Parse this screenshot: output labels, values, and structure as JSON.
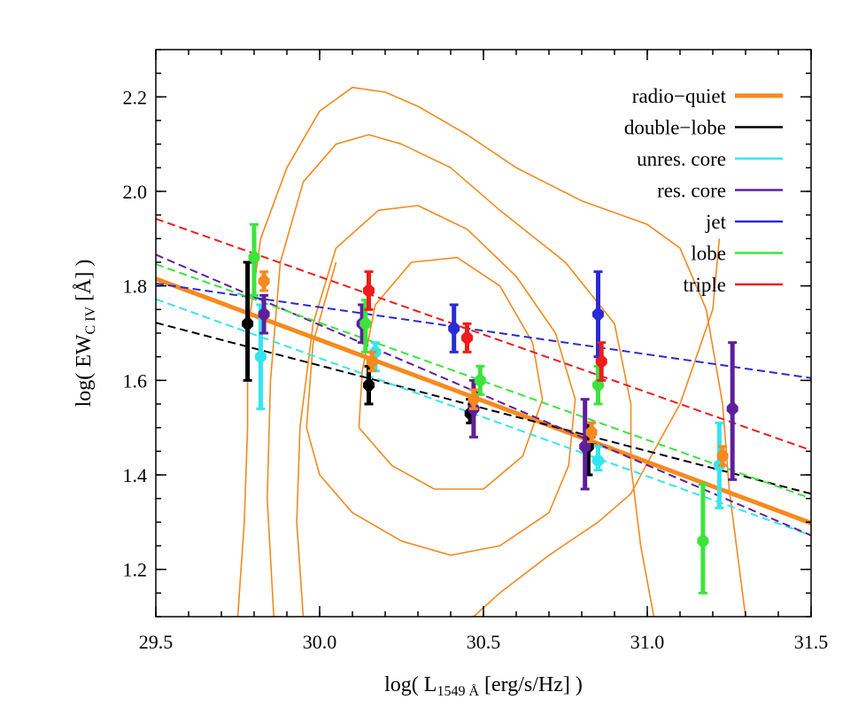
{
  "chart_data": {
    "type": "scatter",
    "xlabel": {
      "prefix": "log( L",
      "sub": "1549 Å",
      "suffix": " [erg/s/Hz] )"
    },
    "ylabel": {
      "prefix": "log( EW",
      "sub": "C IV",
      "suffix": " [Å] )"
    },
    "xlim": [
      29.5,
      31.5
    ],
    "ylim": [
      1.1,
      2.3
    ],
    "xticks": [
      29.5,
      30.0,
      30.5,
      31.0,
      31.5
    ],
    "xtick_labels": [
      "29.5",
      "30.0",
      "30.5",
      "31.0",
      "31.5"
    ],
    "yticks": [
      1.2,
      1.4,
      1.6,
      1.8,
      2.0,
      2.2
    ],
    "ytick_labels": [
      "1.2",
      "1.4",
      "1.6",
      "1.8",
      "2.0",
      "2.2"
    ],
    "grid": false,
    "legend_position": "top-right",
    "contours": {
      "color": "#f28a1e",
      "levels": [
        [
          [
            29.75,
            1.1
          ],
          [
            29.77,
            1.3
          ],
          [
            29.78,
            1.5
          ],
          [
            29.78,
            1.7
          ],
          [
            29.82,
            1.9
          ],
          [
            29.9,
            2.05
          ],
          [
            30.0,
            2.17
          ],
          [
            30.1,
            2.22
          ],
          [
            30.2,
            2.21
          ],
          [
            30.3,
            2.18
          ],
          [
            30.45,
            2.12
          ],
          [
            30.6,
            2.05
          ],
          [
            30.8,
            1.98
          ],
          [
            31.0,
            1.93
          ],
          [
            31.1,
            1.88
          ],
          [
            31.18,
            1.75
          ],
          [
            31.23,
            1.55
          ],
          [
            31.25,
            1.37
          ],
          [
            31.3,
            1.1
          ]
        ],
        [
          [
            29.86,
            1.1
          ],
          [
            29.84,
            1.35
          ],
          [
            29.85,
            1.6
          ],
          [
            29.88,
            1.85
          ],
          [
            29.95,
            2.02
          ],
          [
            30.05,
            2.1
          ],
          [
            30.15,
            2.12
          ],
          [
            30.25,
            2.1
          ],
          [
            30.4,
            2.05
          ],
          [
            30.55,
            1.96
          ],
          [
            30.75,
            1.85
          ],
          [
            30.9,
            1.72
          ],
          [
            30.95,
            1.55
          ],
          [
            30.95,
            1.42
          ],
          [
            30.98,
            1.25
          ],
          [
            31.02,
            1.1
          ]
        ],
        [
          [
            29.95,
            1.1
          ],
          [
            29.93,
            1.3
          ],
          [
            29.94,
            1.5
          ],
          [
            29.98,
            1.72
          ],
          [
            30.05,
            1.88
          ],
          [
            30.18,
            1.96
          ],
          [
            30.3,
            1.97
          ],
          [
            30.45,
            1.92
          ],
          [
            30.6,
            1.82
          ],
          [
            30.72,
            1.7
          ],
          [
            30.78,
            1.56
          ],
          [
            30.76,
            1.42
          ],
          [
            30.7,
            1.32
          ],
          [
            30.55,
            1.25
          ],
          [
            30.4,
            1.23
          ],
          [
            30.25,
            1.26
          ],
          [
            30.1,
            1.32
          ],
          [
            30.0,
            1.4
          ],
          [
            29.96,
            1.5
          ],
          [
            29.98,
            1.68
          ],
          [
            30.05,
            1.85
          ]
        ],
        [
          [
            30.12,
            1.5
          ],
          [
            30.13,
            1.62
          ],
          [
            30.17,
            1.76
          ],
          [
            30.28,
            1.85
          ],
          [
            30.42,
            1.86
          ],
          [
            30.55,
            1.8
          ],
          [
            30.65,
            1.68
          ],
          [
            30.68,
            1.56
          ],
          [
            30.62,
            1.44
          ],
          [
            30.5,
            1.37
          ],
          [
            30.35,
            1.37
          ],
          [
            30.22,
            1.42
          ],
          [
            30.12,
            1.5
          ]
        ],
        [
          [
            30.47,
            1.1
          ],
          [
            30.55,
            1.15
          ],
          [
            30.7,
            1.23
          ],
          [
            30.85,
            1.3
          ],
          [
            30.95,
            1.36
          ],
          [
            31.02,
            1.45
          ],
          [
            31.1,
            1.55
          ],
          [
            31.15,
            1.65
          ],
          [
            31.2,
            1.75
          ],
          [
            31.22,
            1.9
          ]
        ]
      ]
    },
    "series": [
      {
        "name": "radio−quiet",
        "color": "#f78a1e",
        "line": [
          [
            29.5,
            1.815
          ],
          [
            31.5,
            1.298
          ]
        ],
        "points": [
          {
            "x": 29.83,
            "y": 1.81,
            "lo": 1.79,
            "hi": 1.83
          },
          {
            "x": 30.16,
            "y": 1.64,
            "lo": 1.62,
            "hi": 1.66
          },
          {
            "x": 30.47,
            "y": 1.56,
            "lo": 1.54,
            "hi": 1.58
          },
          {
            "x": 30.83,
            "y": 1.49,
            "lo": 1.47,
            "hi": 1.51
          },
          {
            "x": 31.23,
            "y": 1.44,
            "lo": 1.42,
            "hi": 1.46
          }
        ]
      },
      {
        "name": "double−lobe",
        "color": "#000000",
        "line": [
          [
            29.5,
            1.722
          ],
          [
            31.5,
            1.36
          ]
        ],
        "points": [
          {
            "x": 29.78,
            "y": 1.72,
            "lo": 1.6,
            "hi": 1.85
          },
          {
            "x": 30.15,
            "y": 1.59,
            "lo": 1.55,
            "hi": 1.63
          },
          {
            "x": 30.46,
            "y": 1.53,
            "lo": 1.51,
            "hi": 1.56
          },
          {
            "x": 30.82,
            "y": 1.46,
            "lo": 1.4,
            "hi": 1.51
          }
        ]
      },
      {
        "name": "unres. core",
        "color": "#33e5f0",
        "line": [
          [
            29.5,
            1.772
          ],
          [
            31.5,
            1.272
          ]
        ],
        "points": [
          {
            "x": 29.82,
            "y": 1.65,
            "lo": 1.54,
            "hi": 1.76
          },
          {
            "x": 30.17,
            "y": 1.66,
            "lo": 1.62,
            "hi": 1.68
          },
          {
            "x": 30.85,
            "y": 1.43,
            "lo": 1.41,
            "hi": 1.46
          },
          {
            "x": 31.22,
            "y": 1.42,
            "lo": 1.33,
            "hi": 1.51
          }
        ]
      },
      {
        "name": "res. core",
        "color": "#5f1f9c",
        "line": [
          [
            29.5,
            1.866
          ],
          [
            31.5,
            1.272
          ]
        ],
        "points": [
          {
            "x": 29.83,
            "y": 1.74,
            "lo": 1.7,
            "hi": 1.78
          },
          {
            "x": 30.13,
            "y": 1.72,
            "lo": 1.68,
            "hi": 1.76
          },
          {
            "x": 30.47,
            "y": 1.54,
            "lo": 1.48,
            "hi": 1.6
          },
          {
            "x": 30.81,
            "y": 1.46,
            "lo": 1.37,
            "hi": 1.56
          },
          {
            "x": 31.26,
            "y": 1.54,
            "lo": 1.39,
            "hi": 1.68
          }
        ]
      },
      {
        "name": "jet",
        "color": "#2a2ad8",
        "line": [
          [
            29.5,
            1.805
          ],
          [
            31.5,
            1.605
          ]
        ],
        "points": [
          {
            "x": 30.41,
            "y": 1.71,
            "lo": 1.66,
            "hi": 1.76
          },
          {
            "x": 30.85,
            "y": 1.74,
            "lo": 1.65,
            "hi": 1.83
          }
        ]
      },
      {
        "name": "lobe",
        "color": "#3de33d",
        "line": [
          [
            29.5,
            1.846
          ],
          [
            31.5,
            1.35
          ]
        ],
        "points": [
          {
            "x": 29.8,
            "y": 1.86,
            "lo": 1.78,
            "hi": 1.93
          },
          {
            "x": 30.14,
            "y": 1.72,
            "lo": 1.66,
            "hi": 1.77
          },
          {
            "x": 30.49,
            "y": 1.6,
            "lo": 1.57,
            "hi": 1.63
          },
          {
            "x": 30.85,
            "y": 1.59,
            "lo": 1.55,
            "hi": 1.63
          },
          {
            "x": 31.17,
            "y": 1.26,
            "lo": 1.15,
            "hi": 1.38
          }
        ]
      },
      {
        "name": "triple",
        "color": "#ee1c1c",
        "line": [
          [
            29.5,
            1.942
          ],
          [
            31.5,
            1.452
          ]
        ],
        "points": [
          {
            "x": 30.15,
            "y": 1.79,
            "lo": 1.75,
            "hi": 1.83
          },
          {
            "x": 30.45,
            "y": 1.69,
            "lo": 1.66,
            "hi": 1.72
          },
          {
            "x": 30.86,
            "y": 1.64,
            "lo": 1.6,
            "hi": 1.68
          }
        ]
      }
    ]
  }
}
